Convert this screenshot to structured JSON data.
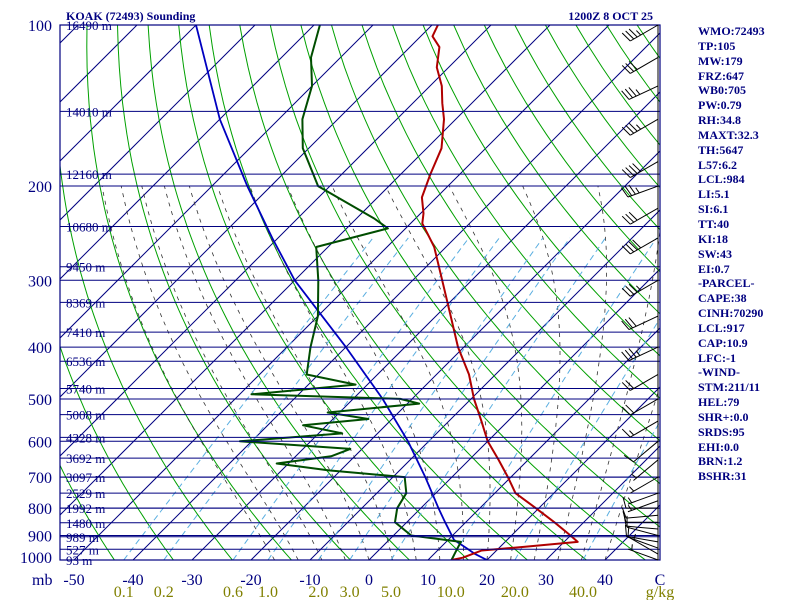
{
  "header": {
    "title": "KOAK (72493) Sounding",
    "datetime": "1200Z  8 OCT 25"
  },
  "indices": [
    "WMO:72493",
    "TP:105",
    "MW:179",
    "FRZ:647",
    "WB0:705",
    "PW:0.79",
    "RH:34.8",
    "MAXT:32.3",
    "TH:5647",
    "L57:6.2",
    "LCL:984",
    "LI:5.1",
    "SI:6.1",
    "TT:40",
    "KI:18",
    "SW:43",
    "EI:0.7",
    "-PARCEL-",
    "CAPE:38",
    "CINH:70290",
    "LCL:917",
    "CAP:10.9",
    "LFC:-1",
    "-WIND-",
    "STM:211/11",
    "HEL:79",
    "SHR+:0.0",
    "SRDS:95",
    "EHI:0.0",
    "BRN:1.2",
    "BSHR:31"
  ],
  "colors": {
    "frame": "#000080",
    "temperature": "#b00000",
    "dewpoint": "#004d00",
    "parcel": "#0000c0",
    "dry_adiabat": "#00a000",
    "moist_adiabat": "#333333",
    "mixing_ratio": "#5aaee0",
    "mixing_label": "#808000",
    "wind": "#000000"
  },
  "chart_data": {
    "type": "skew-t",
    "pressure_ticks": [
      100,
      200,
      300,
      400,
      500,
      600,
      700,
      800,
      900,
      1000
    ],
    "pressure_unit": "mb",
    "temperature_ticks": [
      -50,
      -40,
      -30,
      -20,
      -10,
      0,
      10,
      20,
      30,
      40,
      "C"
    ],
    "mixing_ratio_ticks": [
      "0.1",
      "0.2",
      "0.6",
      "1.0",
      "2.0",
      "3.0",
      "5.0",
      "10.0",
      "20.0",
      "40.0",
      "g/kg"
    ],
    "mixing_ratio_values": [
      0.1,
      0.2,
      0.6,
      1.0,
      2.0,
      3.0,
      5.0,
      10.0,
      20.0,
      40.0
    ],
    "heights": [
      {
        "label": "16490 m",
        "p": 100
      },
      {
        "label": "14010 m",
        "p": 145
      },
      {
        "label": "12160 m",
        "p": 190
      },
      {
        "label": "10680 m",
        "p": 238
      },
      {
        "label": "9450 m",
        "p": 283
      },
      {
        "label": "8369 m",
        "p": 330
      },
      {
        "label": "7410 m",
        "p": 375
      },
      {
        "label": "6536 m",
        "p": 425
      },
      {
        "label": "5740 m",
        "p": 478
      },
      {
        "label": "5008 m",
        "p": 535
      },
      {
        "label": "4328 m",
        "p": 590
      },
      {
        "label": "3692 m",
        "p": 645
      },
      {
        "label": "3097 m",
        "p": 700
      },
      {
        "label": "2529 m",
        "p": 750
      },
      {
        "label": "1992 m",
        "p": 800
      },
      {
        "label": "1480 m",
        "p": 852
      },
      {
        "label": "989 m",
        "p": 905
      },
      {
        "label": "527 m",
        "p": 955
      },
      {
        "label": "93 m",
        "p": 1000
      }
    ],
    "temperature_profile": [
      {
        "p": 1000,
        "t": 14.0
      },
      {
        "p": 990,
        "t": 15.5
      },
      {
        "p": 975,
        "t": 16.5
      },
      {
        "p": 960,
        "t": 17.5
      },
      {
        "p": 945,
        "t": 24.0
      },
      {
        "p": 925,
        "t": 32.3
      },
      {
        "p": 900,
        "t": 30.0
      },
      {
        "p": 850,
        "t": 25.0
      },
      {
        "p": 800,
        "t": 19.5
      },
      {
        "p": 750,
        "t": 13.5
      },
      {
        "p": 700,
        "t": 9.5
      },
      {
        "p": 650,
        "t": 5.0
      },
      {
        "p": 600,
        "t": 0.0
      },
      {
        "p": 550,
        "t": -4.5
      },
      {
        "p": 500,
        "t": -9.5
      },
      {
        "p": 450,
        "t": -14.5
      },
      {
        "p": 400,
        "t": -21.0
      },
      {
        "p": 350,
        "t": -27.5
      },
      {
        "p": 300,
        "t": -35.0
      },
      {
        "p": 260,
        "t": -42.0
      },
      {
        "p": 245,
        "t": -45.5
      },
      {
        "p": 235,
        "t": -48.0
      },
      {
        "p": 225,
        "t": -49.5
      },
      {
        "p": 210,
        "t": -52.5
      },
      {
        "p": 190,
        "t": -55.0
      },
      {
        "p": 170,
        "t": -57.5
      },
      {
        "p": 150,
        "t": -62.0
      },
      {
        "p": 140,
        "t": -65.0
      },
      {
        "p": 130,
        "t": -68.0
      },
      {
        "p": 120,
        "t": -72.0
      },
      {
        "p": 110,
        "t": -75.0
      },
      {
        "p": 105,
        "t": -78.0
      },
      {
        "p": 100,
        "t": -79.0
      }
    ],
    "dewpoint_profile": [
      {
        "p": 1000,
        "t": 14.0
      },
      {
        "p": 975,
        "t": 13.5
      },
      {
        "p": 950,
        "t": 13.0
      },
      {
        "p": 925,
        "t": 12.5
      },
      {
        "p": 900,
        "t": 3.0
      },
      {
        "p": 850,
        "t": -2.0
      },
      {
        "p": 800,
        "t": -4.0
      },
      {
        "p": 750,
        "t": -5.0
      },
      {
        "p": 700,
        "t": -8.0
      },
      {
        "p": 680,
        "t": -22.0
      },
      {
        "p": 660,
        "t": -32.0
      },
      {
        "p": 640,
        "t": -24.0
      },
      {
        "p": 620,
        "t": -22.0
      },
      {
        "p": 600,
        "t": -42.0
      },
      {
        "p": 580,
        "t": -26.0
      },
      {
        "p": 560,
        "t": -34.0
      },
      {
        "p": 545,
        "t": -24.0
      },
      {
        "p": 530,
        "t": -32.0
      },
      {
        "p": 510,
        "t": -18.0
      },
      {
        "p": 500,
        "t": -22.0
      },
      {
        "p": 490,
        "t": -48.0
      },
      {
        "p": 470,
        "t": -32.0
      },
      {
        "p": 450,
        "t": -42.0
      },
      {
        "p": 400,
        "t": -46.0
      },
      {
        "p": 350,
        "t": -50.0
      },
      {
        "p": 300,
        "t": -56.0
      },
      {
        "p": 260,
        "t": -62.0
      },
      {
        "p": 240,
        "t": -53.0
      },
      {
        "p": 230,
        "t": -57.0
      },
      {
        "p": 200,
        "t": -72.0
      },
      {
        "p": 170,
        "t": -81.0
      },
      {
        "p": 150,
        "t": -86.0
      },
      {
        "p": 130,
        "t": -90.0
      },
      {
        "p": 115,
        "t": -95.0
      },
      {
        "p": 100,
        "t": -99.0
      }
    ],
    "parcel_profile": [
      {
        "p": 1000,
        "t": 20.0
      },
      {
        "p": 975,
        "t": 17.0
      },
      {
        "p": 950,
        "t": 14.5
      },
      {
        "p": 917,
        "t": 11.0
      },
      {
        "p": 850,
        "t": 6.5
      },
      {
        "p": 800,
        "t": 3.0
      },
      {
        "p": 700,
        "t": -4.5
      },
      {
        "p": 600,
        "t": -13.5
      },
      {
        "p": 500,
        "t": -25.0
      },
      {
        "p": 400,
        "t": -40.0
      },
      {
        "p": 300,
        "t": -60.0
      },
      {
        "p": 250,
        "t": -71.0
      },
      {
        "p": 200,
        "t": -84.0
      },
      {
        "p": 150,
        "t": -100.0
      },
      {
        "p": 100,
        "t": -120.0
      }
    ],
    "wind_barbs": [
      {
        "p": 1000,
        "dir": 290,
        "spd": 5
      },
      {
        "p": 975,
        "dir": 300,
        "spd": 5
      },
      {
        "p": 950,
        "dir": 290,
        "spd": 10
      },
      {
        "p": 925,
        "dir": 280,
        "spd": 10
      },
      {
        "p": 900,
        "dir": 285,
        "spd": 10
      },
      {
        "p": 875,
        "dir": 275,
        "spd": 10
      },
      {
        "p": 850,
        "dir": 270,
        "spd": 10
      },
      {
        "p": 825,
        "dir": 265,
        "spd": 10
      },
      {
        "p": 800,
        "dir": 270,
        "spd": 10
      },
      {
        "p": 775,
        "dir": 250,
        "spd": 5
      },
      {
        "p": 750,
        "dir": 250,
        "spd": 5
      },
      {
        "p": 700,
        "dir": 240,
        "spd": 5
      },
      {
        "p": 650,
        "dir": 230,
        "spd": 5
      },
      {
        "p": 600,
        "dir": 230,
        "spd": 10
      },
      {
        "p": 550,
        "dir": 240,
        "spd": 15
      },
      {
        "p": 500,
        "dir": 240,
        "spd": 20
      },
      {
        "p": 450,
        "dir": 240,
        "spd": 20
      },
      {
        "p": 400,
        "dir": 245,
        "spd": 35
      },
      {
        "p": 350,
        "dir": 245,
        "spd": 30
      },
      {
        "p": 300,
        "dir": 240,
        "spd": 35
      },
      {
        "p": 250,
        "dir": 240,
        "spd": 40
      },
      {
        "p": 220,
        "dir": 240,
        "spd": 30
      },
      {
        "p": 200,
        "dir": 250,
        "spd": 35
      },
      {
        "p": 180,
        "dir": 240,
        "spd": 40
      },
      {
        "p": 150,
        "dir": 240,
        "spd": 35
      },
      {
        "p": 130,
        "dir": 245,
        "spd": 35
      },
      {
        "p": 115,
        "dir": 240,
        "spd": 30
      },
      {
        "p": 100,
        "dir": 240,
        "spd": 35
      }
    ]
  }
}
